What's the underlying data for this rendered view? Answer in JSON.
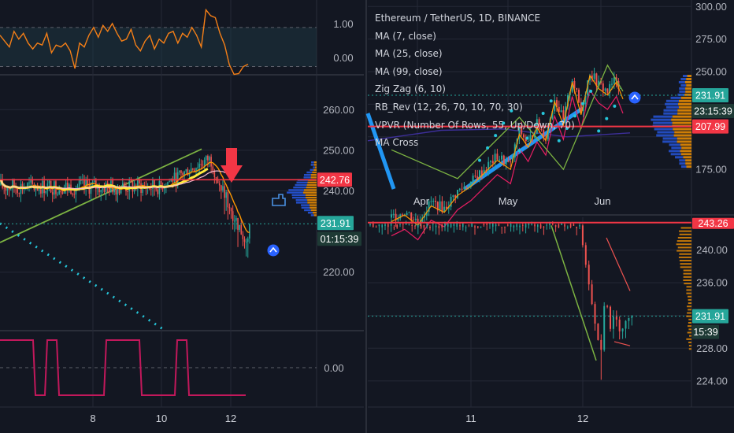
{
  "colors": {
    "background": "#131722",
    "grid": "#242836",
    "price_red": "#f23645",
    "price_green": "#26a69a",
    "candle_up": "#26a69a",
    "candle_down": "#ef5350",
    "ma_orange": "#ff9800",
    "ma_yellow": "#ffeb3b",
    "zigzag": "#7cb342",
    "cyan_dots": "#26c6da",
    "osc_orange": "#f57f17",
    "pink_line": "#c2185b",
    "ma_cross_blue": "#2962ff"
  },
  "icons": [
    "down-arrow-marker-icon",
    "hand-pointer-icon",
    "up-chevron-circle-icon"
  ],
  "chart_data": [
    {
      "id": "left-oscillator",
      "type": "line",
      "ylim": [
        -0.15,
        1.6
      ],
      "yticks": [
        "1.00",
        "0.00"
      ],
      "band": [
        0,
        1
      ],
      "series": [
        {
          "values": [
            0.8,
            0.65,
            0.5,
            0.9,
            0.7,
            0.85,
            0.6,
            0.45,
            0.6,
            0.55,
            0.85,
            0.35,
            0.55,
            0.5,
            0.6,
            0.4,
            -0.05,
            0.6,
            0.5,
            0.8,
            1.0,
            0.75,
            1.05,
            0.9,
            1.1,
            0.85,
            0.65,
            0.7,
            0.95,
            0.55,
            0.4,
            0.65,
            0.8,
            0.45,
            0.7,
            0.6,
            0.85,
            0.9,
            0.6,
            0.85,
            0.75,
            1.0,
            0.8,
            0.5,
            1.45,
            1.3,
            1.25,
            0.85,
            0.55,
            0.05,
            -0.2,
            -0.18,
            0.0,
            0.06
          ]
        }
      ]
    },
    {
      "id": "left-price",
      "type": "candlestick",
      "ylim": [
        206,
        268
      ],
      "yticks": [
        "260.00",
        "250.00",
        "240.00",
        "220.00"
      ],
      "xticks": [
        "8",
        "10",
        "12"
      ],
      "current_price": "231.91",
      "countdown": "01:15:39",
      "level_price": "242.76",
      "candles_approx": 150,
      "range_pre": [
        238,
        246
      ],
      "peak": 250.3,
      "drop_low": 226.5,
      "last": 231.91
    },
    {
      "id": "left-lower-indicator",
      "type": "line",
      "ytick": "0.00",
      "series": [
        {
          "values": [
            1,
            1,
            1,
            0,
            1,
            0,
            0,
            0,
            0,
            1,
            1,
            1,
            0,
            0,
            0,
            1,
            0,
            0,
            0,
            0,
            0
          ]
        }
      ]
    },
    {
      "id": "right-daily",
      "type": "candlestick",
      "title": "Ethereum / TetherUS, 1D, BINANCE",
      "ylim": [
        160,
        305
      ],
      "yticks": [
        "300.00",
        "275.00",
        "250.00",
        "175.00"
      ],
      "xticks": [
        "Apr",
        "May",
        "Jun"
      ],
      "current_price": "231.91",
      "countdown": "23:15:39",
      "level_price": "207.99",
      "path_points": [
        [
          0,
          138
        ],
        [
          6,
          143
        ],
        [
          12,
          135
        ],
        [
          18,
          150
        ],
        [
          24,
          145
        ],
        [
          30,
          158
        ],
        [
          36,
          165
        ],
        [
          42,
          175
        ],
        [
          48,
          185
        ],
        [
          54,
          178
        ],
        [
          58,
          205
        ],
        [
          62,
          195
        ],
        [
          66,
          210
        ],
        [
          70,
          200
        ],
        [
          74,
          230
        ],
        [
          78,
          212
        ],
        [
          82,
          245
        ],
        [
          86,
          220
        ],
        [
          90,
          250
        ],
        [
          94,
          240
        ],
        [
          98,
          235
        ],
        [
          102,
          245
        ],
        [
          105,
          232
        ]
      ],
      "indicators": [
        "MA (7, close)",
        "MA (25, close)",
        "MA (99, close)",
        "Zig Zag (6, 10)",
        "RB_Rev (12, 26, 70, 10, 70, 30)",
        "VPVR (Number Of Rows, 55, Up/Down, 70)",
        "MA Cross"
      ]
    },
    {
      "id": "right-intraday",
      "type": "candlestick",
      "ylim": [
        221,
        244
      ],
      "yticks": [
        "240.00",
        "236.00",
        "232.00",
        "228.00",
        "224.00"
      ],
      "xticks": [
        "11",
        "12"
      ],
      "current_price": "231.91",
      "countdown": "15:39",
      "level_price": "243.26",
      "flat_level": 243.0,
      "drop_low": 226.3,
      "last": 231.91
    }
  ]
}
